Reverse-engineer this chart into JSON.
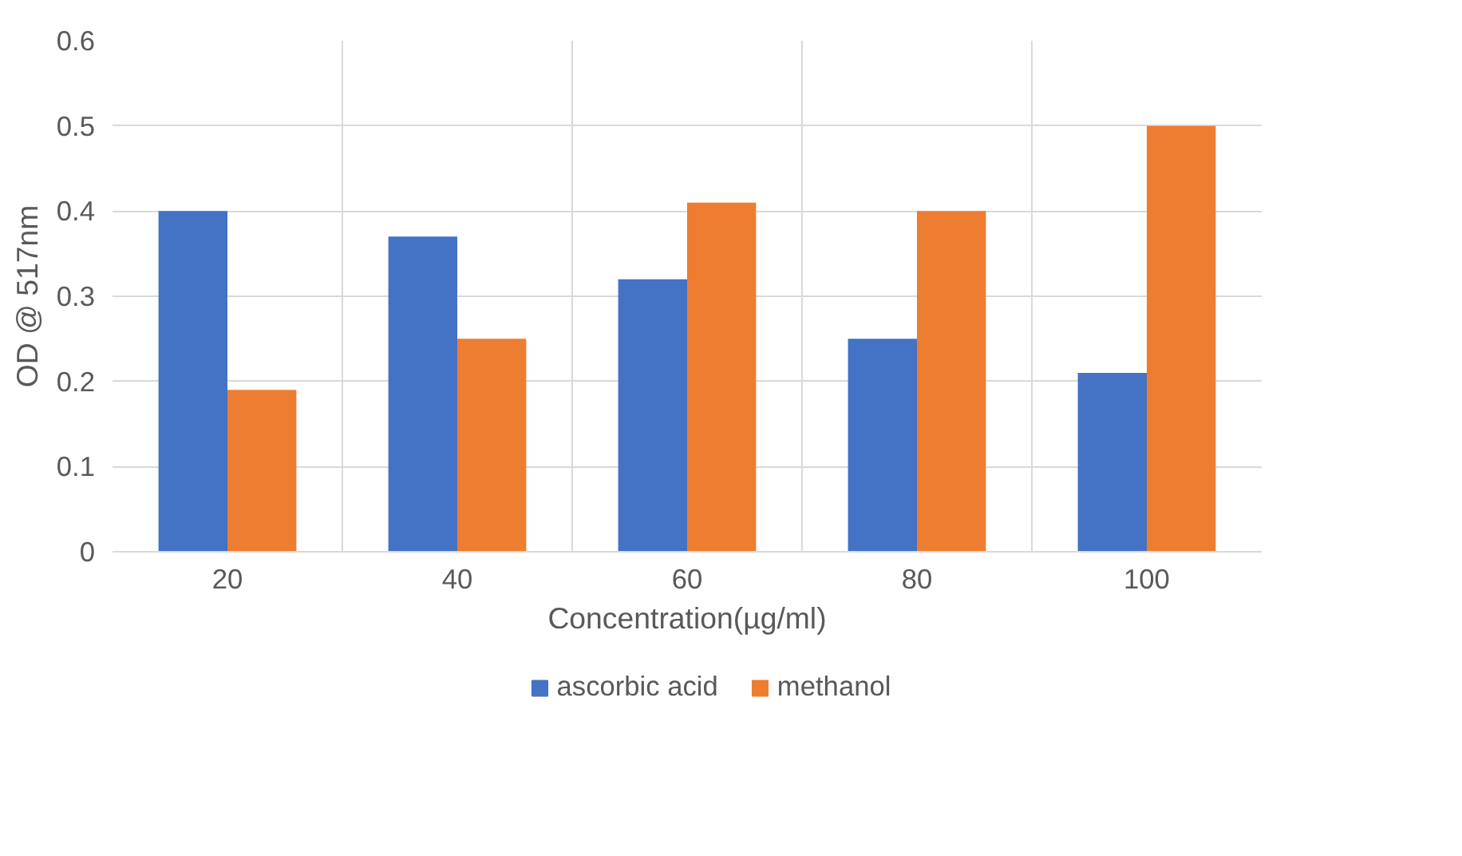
{
  "chart_data": {
    "type": "bar",
    "xlabel": "Concentration(µg/ml)",
    "ylabel": "OD @ 517nm",
    "categories": [
      "20",
      "40",
      "60",
      "80",
      "100"
    ],
    "series": [
      {
        "name": "ascorbic acid",
        "color": "#4472c4",
        "values": [
          0.4,
          0.37,
          0.32,
          0.25,
          0.21
        ]
      },
      {
        "name": "methanol",
        "color": "#ed7d31",
        "values": [
          0.19,
          0.25,
          0.41,
          0.4,
          0.5
        ]
      }
    ],
    "ylim": [
      0,
      0.6
    ],
    "yticks": [
      0,
      0.1,
      0.2,
      0.3,
      0.4,
      0.5,
      0.6
    ],
    "grid": true,
    "legend": "bottom"
  }
}
